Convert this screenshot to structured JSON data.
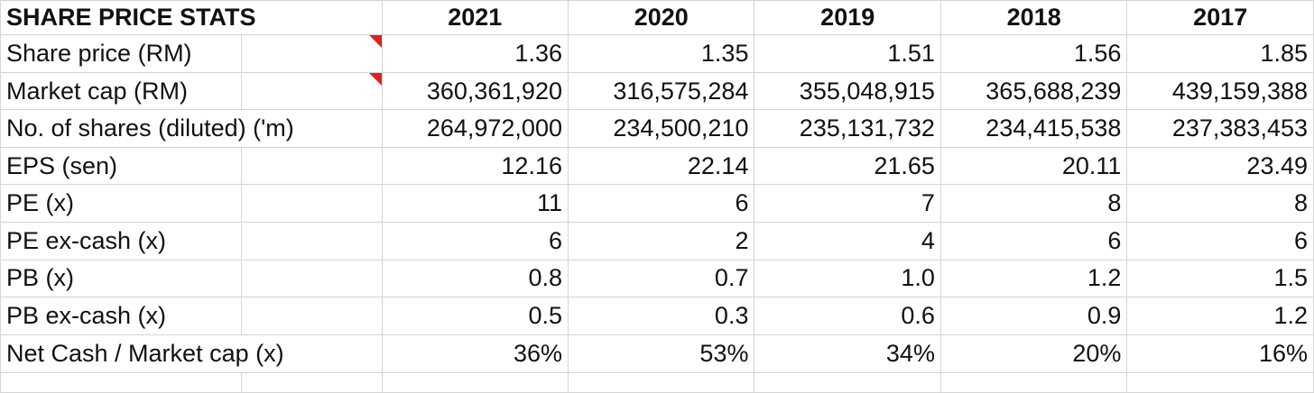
{
  "header": {
    "title": "SHARE PRICE STATS",
    "years": [
      "2021",
      "2020",
      "2019",
      "2018",
      "2017"
    ]
  },
  "rows": [
    {
      "label": "Share price (RM)",
      "has_note": true,
      "values": [
        "1.36",
        "1.35",
        "1.51",
        "1.56",
        "1.85"
      ]
    },
    {
      "label": "Market cap (RM)",
      "has_note": true,
      "values": [
        "360,361,920",
        "316,575,284",
        "355,048,915",
        "365,688,239",
        "439,159,388"
      ]
    },
    {
      "label": "No. of shares (diluted) ('m)",
      "has_note": false,
      "values": [
        "264,972,000",
        "234,500,210",
        "235,131,732",
        "234,415,538",
        "237,383,453"
      ]
    },
    {
      "label": "EPS (sen)",
      "has_note": false,
      "values": [
        "12.16",
        "22.14",
        "21.65",
        "20.11",
        "23.49"
      ]
    },
    {
      "label": "PE (x)",
      "has_note": false,
      "values": [
        "11",
        "6",
        "7",
        "8",
        "8"
      ]
    },
    {
      "label": "PE ex-cash (x)",
      "has_note": false,
      "values": [
        "6",
        "2",
        "4",
        "6",
        "6"
      ]
    },
    {
      "label": "PB (x)",
      "has_note": false,
      "values": [
        "0.8",
        "0.7",
        "1.0",
        "1.2",
        "1.5"
      ]
    },
    {
      "label": "PB ex-cash (x)",
      "has_note": false,
      "values": [
        "0.5",
        "0.3",
        "0.6",
        "0.9",
        "1.2"
      ]
    },
    {
      "label": "Net Cash / Market cap (x)",
      "has_note": false,
      "values": [
        "36%",
        "53%",
        "34%",
        "20%",
        "16%"
      ]
    }
  ],
  "colors": {
    "title": "#4a6fc1",
    "note_marker": "#e02020",
    "gridline": "#d4d4d4"
  }
}
